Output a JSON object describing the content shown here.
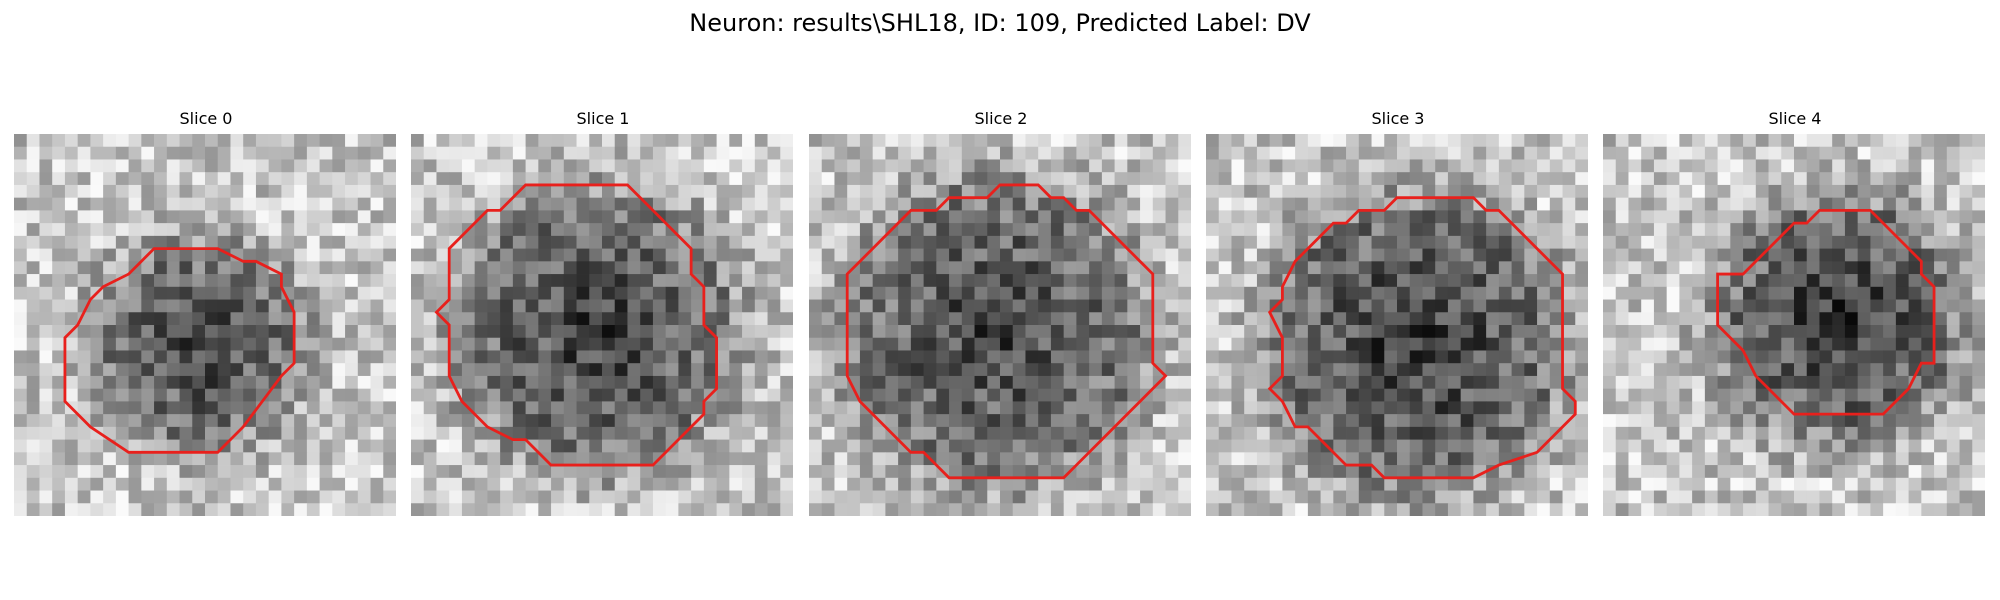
{
  "figure": {
    "title": "Neuron: results\\SHL18, ID: 109, Predicted Label: DV"
  },
  "panels": [
    {
      "title": "Slice 0"
    },
    {
      "title": "Slice 1"
    },
    {
      "title": "Slice 2"
    },
    {
      "title": "Slice 3"
    },
    {
      "title": "Slice 4"
    }
  ],
  "colors": {
    "contour": "#e8201c",
    "background": "#ffffff",
    "colormap": "grayscale"
  }
}
